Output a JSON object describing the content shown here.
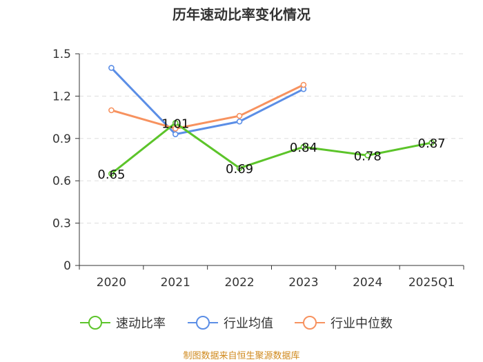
{
  "chart_data": {
    "type": "line",
    "title": "历年速动比率变化情况",
    "categories": [
      "2020",
      "2021",
      "2022",
      "2023",
      "2024",
      "2025Q1"
    ],
    "ylim": [
      0,
      1.5
    ],
    "yticks": [
      "0",
      "0.3",
      "0.6",
      "0.9",
      "1.2",
      "1.5"
    ],
    "grid": true,
    "legend_position": "bottom",
    "series": [
      {
        "name": "速动比率",
        "color": "#5cc42a",
        "values": [
          0.65,
          1.01,
          0.69,
          0.84,
          0.78,
          0.87
        ],
        "labels": [
          "0.65",
          "1.01",
          "0.69",
          "0.84",
          "0.78",
          "0.87"
        ]
      },
      {
        "name": "行业均值",
        "color": "#5b8ee6",
        "values": [
          1.4,
          0.93,
          1.02,
          1.25,
          null,
          null
        ]
      },
      {
        "name": "行业中位数",
        "color": "#f7925f",
        "values": [
          1.1,
          0.97,
          1.06,
          1.28,
          null,
          null
        ]
      }
    ]
  },
  "source": "制图数据来自恒生聚源数据库"
}
